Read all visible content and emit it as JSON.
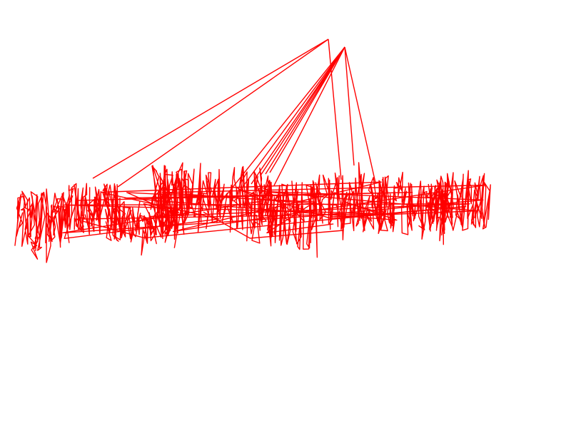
{
  "stroke_color": "#ff0000",
  "background_color": "#ffffff",
  "scribble_seed": 7,
  "scribble_points_per_segment": 120,
  "apex_points": [
    "apex-a",
    "apex-b"
  ],
  "content_kind": "red freehand scribble strokes"
}
